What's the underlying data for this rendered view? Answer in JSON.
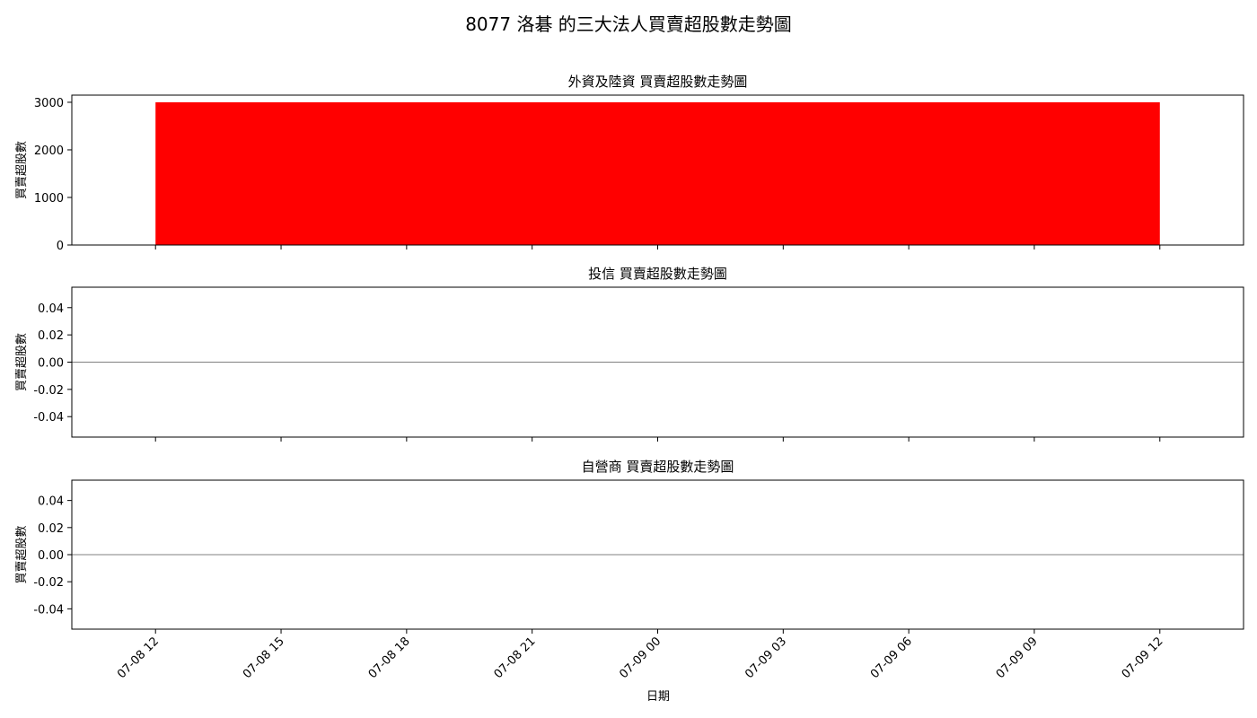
{
  "figure": {
    "title": "8077 洛碁 的三大法人買賣超股數走勢圖",
    "xlabel": "日期"
  },
  "chart_data": [
    {
      "type": "bar",
      "title": "外資及陸資 買賣超股數走勢圖",
      "ylabel": "買賣超股數",
      "ylim": [
        0,
        3150
      ],
      "yticks": [
        0,
        1000,
        2000,
        3000
      ],
      "ytick_labels": [
        "0",
        "1000",
        "2000",
        "3000"
      ],
      "bars": [
        {
          "x_start": "2024-07-08 12:00",
          "x_end": "2024-07-09 12:00",
          "value": 3000,
          "color": "#ff0000"
        }
      ]
    },
    {
      "type": "bar",
      "title": "投信 買賣超股數走勢圖",
      "ylabel": "買賣超股數",
      "ylim": [
        -0.055,
        0.055
      ],
      "yticks": [
        -0.04,
        -0.02,
        0.0,
        0.02,
        0.04
      ],
      "ytick_labels": [
        "-0.04",
        "-0.02",
        "0.00",
        "0.02",
        "0.04"
      ],
      "bars": [],
      "reference_line": {
        "value": 0,
        "color": "#808080"
      }
    },
    {
      "type": "bar",
      "title": "自營商 買賣超股數走勢圖",
      "ylabel": "買賣超股數",
      "ylim": [
        -0.055,
        0.055
      ],
      "yticks": [
        -0.04,
        -0.02,
        0.0,
        0.02,
        0.04
      ],
      "ytick_labels": [
        "-0.04",
        "-0.02",
        "0.00",
        "0.02",
        "0.04"
      ],
      "bars": [],
      "reference_line": {
        "value": 0,
        "color": "#808080"
      }
    }
  ],
  "shared_x": {
    "range": [
      "2024-07-08 10:00",
      "2024-07-09 14:00"
    ],
    "ticks": [
      "2024-07-08 12:00",
      "2024-07-08 15:00",
      "2024-07-08 18:00",
      "2024-07-08 21:00",
      "2024-07-09 00:00",
      "2024-07-09 03:00",
      "2024-07-09 06:00",
      "2024-07-09 09:00",
      "2024-07-09 12:00"
    ],
    "tick_labels": [
      "07-08 12",
      "07-08 15",
      "07-08 18",
      "07-08 21",
      "07-09 00",
      "07-09 03",
      "07-09 06",
      "07-09 09",
      "07-09 12"
    ]
  }
}
